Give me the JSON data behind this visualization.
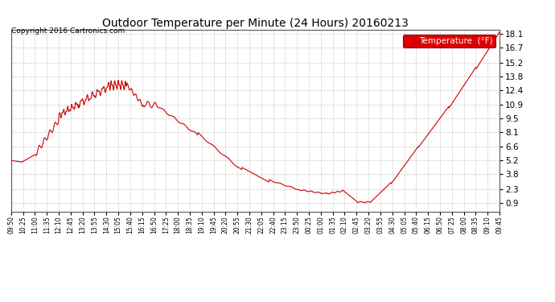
{
  "title": "Outdoor Temperature per Minute (24 Hours) 20160213",
  "copyright_text": "Copyright 2016 Cartronics.com",
  "legend_label": "Temperature  (°F)",
  "line_color": "#cc0000",
  "bg_color": "#ffffff",
  "plot_bg_color": "#ffffff",
  "grid_color": "#bbbbbb",
  "yticks": [
    0.9,
    2.3,
    3.8,
    5.2,
    6.6,
    8.1,
    9.5,
    10.9,
    12.4,
    13.8,
    15.2,
    16.7,
    18.1
  ],
  "xtick_labels": [
    "09:50",
    "10:25",
    "11:00",
    "11:35",
    "12:10",
    "12:45",
    "13:20",
    "13:55",
    "14:30",
    "15:05",
    "15:40",
    "16:15",
    "16:50",
    "17:25",
    "18:00",
    "18:35",
    "19:10",
    "19:45",
    "20:20",
    "20:55",
    "21:30",
    "22:05",
    "22:40",
    "23:15",
    "23:50",
    "00:25",
    "01:00",
    "01:35",
    "02:10",
    "02:45",
    "03:20",
    "03:55",
    "04:30",
    "05:05",
    "05:40",
    "06:15",
    "06:50",
    "07:25",
    "08:00",
    "08:35",
    "09:10",
    "09:45"
  ],
  "ymin": 0.0,
  "ymax": 18.5,
  "figwidth": 6.9,
  "figheight": 3.75,
  "dpi": 100
}
